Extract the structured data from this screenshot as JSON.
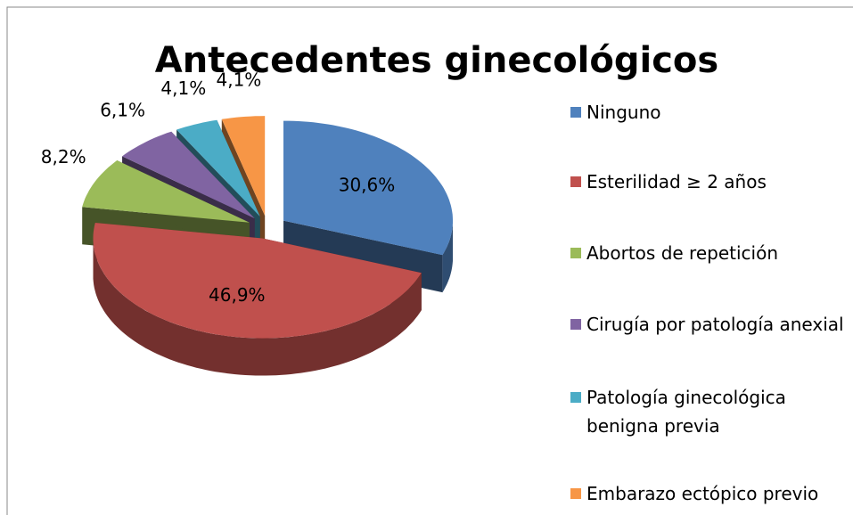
{
  "chart_data": {
    "type": "pie3d",
    "title": "Antecedentes ginecológicos",
    "categories": [
      "Ninguno",
      "Esterilidad ≥ 2 años",
      "Abortos de repetición",
      "Cirugía por patología anexial",
      "Patología ginecológica benigna previa",
      "Embarazo ectópico previo"
    ],
    "values": [
      30.6,
      46.9,
      8.2,
      6.1,
      4.1,
      4.1
    ],
    "value_labels": [
      "30,6%",
      "46,9%",
      "8,2%",
      "6,1%",
      "4,1%",
      "4,1%"
    ],
    "colors": [
      "#4f81bd",
      "#c0504d",
      "#9bbb59",
      "#8064a2",
      "#4bacc6",
      "#f79646"
    ],
    "legend": "right"
  }
}
